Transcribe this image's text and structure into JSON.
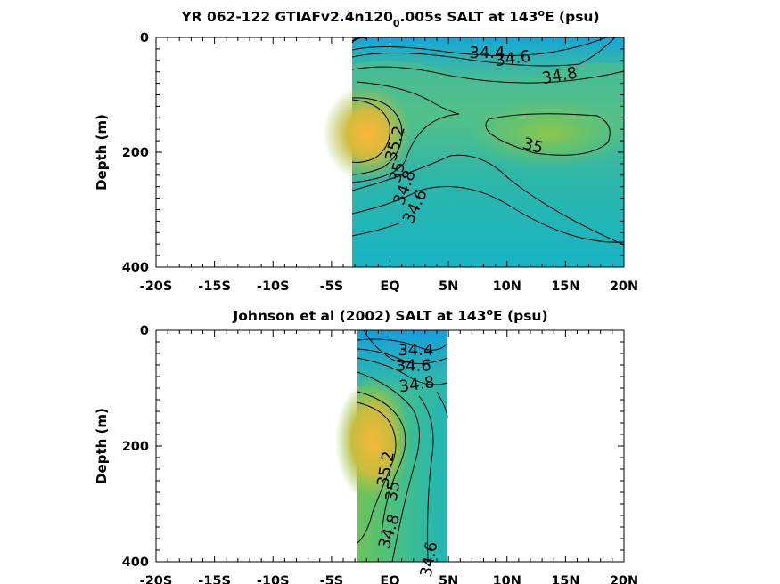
{
  "chart_data": [
    {
      "type": "heatmap",
      "title_main": "YR 062-122 GTIAFv2.4n120",
      "title_sub": "0",
      "title_rest": ".005s SALT at 143",
      "title_sup": "o",
      "title_end": "E (psu)",
      "ylabel": "Depth (m)",
      "xlim": [
        -20,
        20
      ],
      "ylim": [
        0,
        400
      ],
      "y_reversed": true,
      "x_ticks": [
        -20,
        -15,
        -10,
        -5,
        0,
        5,
        10,
        15,
        20
      ],
      "x_tick_labels": [
        "-20S",
        "-15S",
        "-10S",
        "-5S",
        "EQ",
        "5N",
        "10N",
        "15N",
        "20N"
      ],
      "y_ticks": [
        0,
        200,
        400
      ],
      "y_tick_labels": [
        "0",
        "200",
        "400"
      ],
      "data_extent_lon": [
        -3,
        20
      ],
      "contour_labels": [
        {
          "text": "34.4",
          "lon": 8.3,
          "depth": 28,
          "angle": 0
        },
        {
          "text": "34.6",
          "lon": 10.5,
          "depth": 38,
          "angle": -8
        },
        {
          "text": "34.8",
          "lon": 14.5,
          "depth": 68,
          "angle": -10
        },
        {
          "text": "35",
          "lon": 12.2,
          "depth": 190,
          "angle": 15
        },
        {
          "text": "35.2",
          "lon": 0.5,
          "depth": 185,
          "angle": -75
        },
        {
          "text": "35",
          "lon": 0.7,
          "depth": 235,
          "angle": -75
        },
        {
          "text": "34.8",
          "lon": 1.3,
          "depth": 262,
          "angle": -70
        },
        {
          "text": "34.6",
          "lon": 2.2,
          "depth": 295,
          "angle": -65
        }
      ]
    },
    {
      "type": "heatmap",
      "title_main": "Johnson et al (2002) SALT at 143",
      "title_sup": "o",
      "title_end": "E (psu)",
      "ylabel": "Depth (m)",
      "xlim": [
        -20,
        20
      ],
      "ylim": [
        0,
        400
      ],
      "y_reversed": true,
      "x_ticks": [
        -20,
        -15,
        -10,
        -5,
        0,
        5,
        10,
        15,
        20
      ],
      "x_tick_labels": [
        "-20S",
        "-15S",
        "-10S",
        "-5S",
        "EQ",
        "5N",
        "10N",
        "15N",
        "20N"
      ],
      "y_ticks": [
        0,
        200,
        400
      ],
      "y_tick_labels": [
        "0",
        "200",
        "400"
      ],
      "data_extent_lon": [
        -2.6,
        5
      ],
      "contour_labels": [
        {
          "text": "34.4",
          "lon": 2.2,
          "depth": 35,
          "angle": 0
        },
        {
          "text": "34.6",
          "lon": 2.0,
          "depth": 62,
          "angle": 0
        },
        {
          "text": "34.8",
          "lon": 2.3,
          "depth": 95,
          "angle": -8
        },
        {
          "text": "35.2",
          "lon": -0.3,
          "depth": 240,
          "angle": -80
        },
        {
          "text": "35",
          "lon": 0.3,
          "depth": 278,
          "angle": -80
        },
        {
          "text": "34.8",
          "lon": 0.0,
          "depth": 348,
          "angle": -72
        },
        {
          "text": "34.6",
          "lon": 3.4,
          "depth": 396,
          "angle": -80
        }
      ]
    }
  ]
}
